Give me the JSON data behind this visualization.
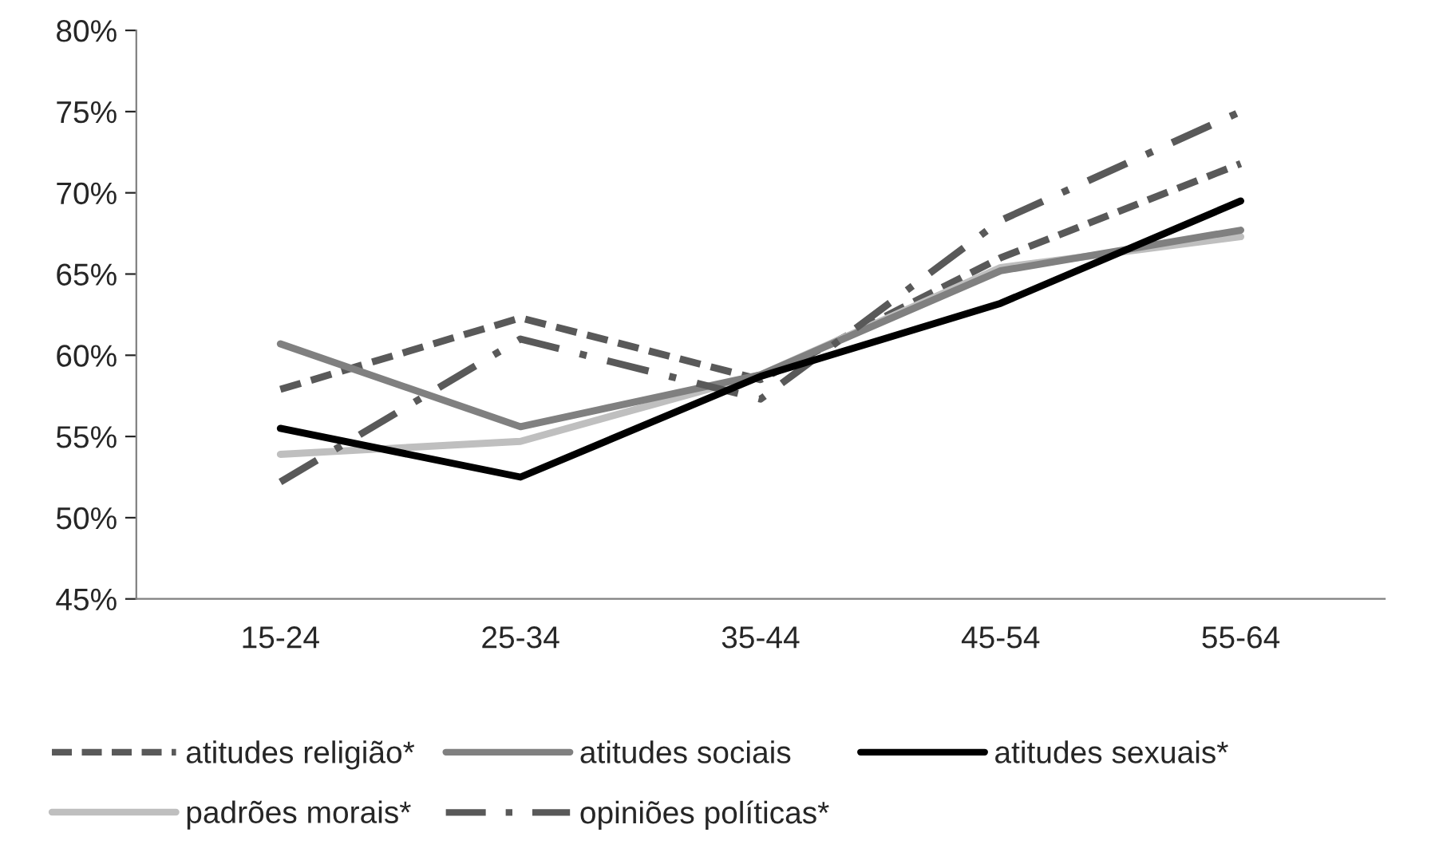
{
  "chart_data": {
    "type": "line",
    "categories": [
      "15-24",
      "25-34",
      "35-44",
      "45-54",
      "55-64"
    ],
    "ylim": [
      45,
      80
    ],
    "yticks": [
      {
        "value": 45,
        "label": "45%"
      },
      {
        "value": 50,
        "label": "50%"
      },
      {
        "value": 55,
        "label": "55%"
      },
      {
        "value": 60,
        "label": "60%"
      },
      {
        "value": 65,
        "label": "65%"
      },
      {
        "value": 70,
        "label": "70%"
      },
      {
        "value": 75,
        "label": "75%"
      },
      {
        "value": 80,
        "label": "80%"
      }
    ],
    "grid": false,
    "legend": "bottom",
    "marker": "none",
    "series": [
      {
        "name": "atitudes religião*",
        "color": "#595959",
        "line_style": "dashed",
        "values": [
          57.9,
          62.3,
          58.5,
          66.0,
          71.8
        ]
      },
      {
        "name": "padrões morais*",
        "color": "#bfbfbf",
        "line_style": "solid",
        "values": [
          53.9,
          54.7,
          58.8,
          65.4,
          67.3
        ]
      },
      {
        "name": "atitudes sociais",
        "color": "#808080",
        "line_style": "solid",
        "values": [
          60.7,
          55.6,
          58.8,
          65.2,
          67.7
        ]
      },
      {
        "name": "opiniões políticas*",
        "color": "#595959",
        "line_style": "dashdot",
        "values": [
          52.2,
          61.0,
          57.3,
          68.3,
          75.0
        ]
      },
      {
        "name": "atitudes sexuais*",
        "color": "#000000",
        "line_style": "solid",
        "values": [
          55.5,
          52.5,
          58.7,
          63.2,
          69.5
        ]
      }
    ]
  }
}
